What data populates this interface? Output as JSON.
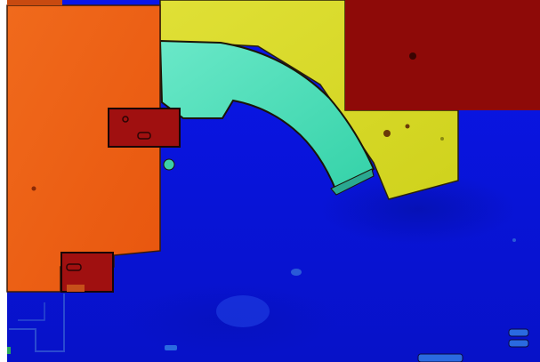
{
  "image": {
    "kind": "depth-colormap",
    "colormap": "jet",
    "colors": {
      "frame": "#ffffff",
      "background_blue": "#0a14e6",
      "deep_blue": "#0810c4",
      "orange": "#ee5e14",
      "orange_light": "#f27a24",
      "dark_red": "#8e0a08",
      "red_block": "#a01010",
      "yellow": "#d8dc24",
      "yellow_light": "#e2e43a",
      "teal": "#3fdcb0",
      "teal_light": "#60e6c2",
      "outline": "#1a0e06",
      "cyan_hint": "#2d8cff"
    }
  }
}
